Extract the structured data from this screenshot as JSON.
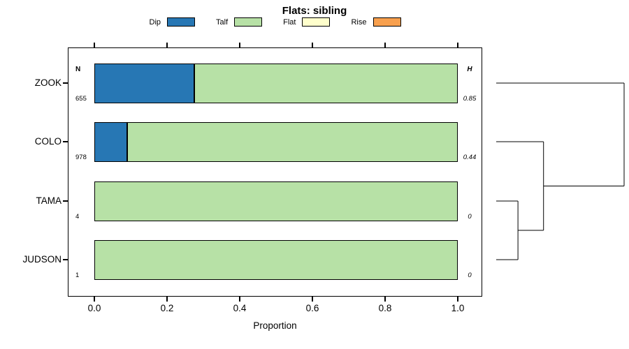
{
  "chart_data": {
    "type": "bar",
    "orientation": "horizontal",
    "stacked": true,
    "title": "Flats: sibling",
    "xlabel": "Proportion",
    "xlim": [
      0,
      1
    ],
    "xticks": [
      0,
      0.2,
      0.4,
      0.6,
      0.8,
      1
    ],
    "xtick_labels": [
      "0.0",
      "0.2",
      "0.4",
      "0.6",
      "0.8",
      "1.0"
    ],
    "categories": [
      "ZOOK",
      "COLO",
      "TAMA",
      "JUDSON"
    ],
    "series": [
      {
        "name": "Dip",
        "color": "#2777b4",
        "values": [
          0.275,
          0.09,
          0,
          0
        ]
      },
      {
        "name": "Talf",
        "color": "#b7e1a6",
        "values": [
          0.725,
          0.91,
          1,
          1
        ]
      },
      {
        "name": "Flat",
        "color": "#ffffcc",
        "values": [
          0,
          0,
          0,
          0
        ]
      },
      {
        "name": "Rise",
        "color": "#f8a04e",
        "values": [
          0,
          0,
          0,
          0
        ]
      }
    ],
    "n_header": "N",
    "h_header": "H",
    "n_values": [
      655,
      978,
      4,
      1
    ],
    "h_values": [
      0.85,
      0.44,
      0,
      0
    ],
    "legend_position": "top",
    "grid": false,
    "axis_color": "#000000",
    "dendrogram": {
      "leaves": [
        "ZOOK",
        "COLO",
        "TAMA",
        "JUDSON"
      ],
      "merges": [
        {
          "a": "TAMA",
          "b": "JUDSON",
          "height": 0.17
        },
        {
          "a": "COLO",
          "b": "m0",
          "height": 0.37
        },
        {
          "a": "ZOOK",
          "b": "m1",
          "height": 1.0
        }
      ]
    }
  }
}
